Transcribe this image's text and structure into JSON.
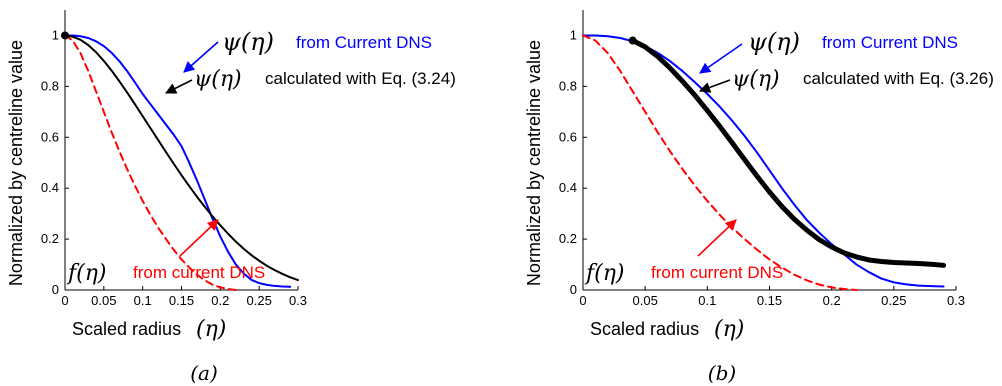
{
  "chart_data": [
    {
      "type": "line",
      "panel_label": "(a)",
      "xlabel": "Scaled radius",
      "xlabel_symbol": "(η)",
      "ylabel": "Normalized by centreline value",
      "xlim": [
        0,
        0.3
      ],
      "ylim": [
        0,
        1.1
      ],
      "xticks": [
        "0",
        "0.05",
        "0.1",
        "0.15",
        "0.2",
        "0.25",
        "0.3"
      ],
      "yticks": [
        "0",
        "0.2",
        "0.4",
        "0.6",
        "0.8",
        "1"
      ],
      "grid": false,
      "series": [
        {
          "name": "ψ(η) from Current DNS",
          "color": "#0000ff",
          "style": "solid",
          "x": [
            0,
            0.01,
            0.02,
            0.03,
            0.04,
            0.05,
            0.06,
            0.07,
            0.08,
            0.09,
            0.1,
            0.11,
            0.12,
            0.13,
            0.14,
            0.15,
            0.16,
            0.17,
            0.18,
            0.19,
            0.2,
            0.21,
            0.22,
            0.23,
            0.24,
            0.25,
            0.26,
            0.27,
            0.28,
            0.29
          ],
          "y": [
            1.0,
            1.0,
            0.997,
            0.99,
            0.977,
            0.958,
            0.932,
            0.899,
            0.86,
            0.816,
            0.77,
            0.73,
            0.69,
            0.65,
            0.61,
            0.565,
            0.5,
            0.43,
            0.355,
            0.28,
            0.21,
            0.15,
            0.1,
            0.065,
            0.04,
            0.027,
            0.02,
            0.016,
            0.014,
            0.013
          ]
        },
        {
          "name": "ψ(η) calculated with Eq. (3.24)",
          "color": "#000000",
          "style": "solid",
          "x": [
            0,
            0.01,
            0.02,
            0.03,
            0.04,
            0.05,
            0.06,
            0.07,
            0.08,
            0.09,
            0.1,
            0.11,
            0.12,
            0.13,
            0.14,
            0.15,
            0.16,
            0.17,
            0.18,
            0.19,
            0.2,
            0.21,
            0.22,
            0.23,
            0.24,
            0.25,
            0.26,
            0.27,
            0.28,
            0.29,
            0.3
          ],
          "y": [
            1.0,
            0.995,
            0.983,
            0.962,
            0.934,
            0.9,
            0.862,
            0.82,
            0.776,
            0.73,
            0.683,
            0.636,
            0.589,
            0.542,
            0.496,
            0.451,
            0.408,
            0.366,
            0.327,
            0.289,
            0.254,
            0.221,
            0.19,
            0.162,
            0.137,
            0.115,
            0.095,
            0.078,
            0.063,
            0.05,
            0.039
          ]
        },
        {
          "name": "f(η) from current DNS",
          "color": "#ff0000",
          "style": "dashed",
          "x": [
            0,
            0.01,
            0.02,
            0.03,
            0.04,
            0.05,
            0.06,
            0.07,
            0.08,
            0.09,
            0.1,
            0.11,
            0.12,
            0.13,
            0.14,
            0.15,
            0.16,
            0.17,
            0.18,
            0.19,
            0.2,
            0.21,
            0.22
          ],
          "y": [
            1.0,
            0.98,
            0.93,
            0.86,
            0.78,
            0.7,
            0.62,
            0.545,
            0.475,
            0.41,
            0.35,
            0.295,
            0.245,
            0.2,
            0.158,
            0.12,
            0.088,
            0.06,
            0.038,
            0.021,
            0.01,
            0.004,
            0.0
          ]
        }
      ],
      "marker": {
        "x": 0.0,
        "y": 1.0
      },
      "annotations": [
        {
          "math": "ψ(η)",
          "text": "from Current DNS",
          "color": "#0000ff"
        },
        {
          "math": "ψ(η)",
          "text": "calculated with Eq. (3.24)",
          "color": "#000000"
        },
        {
          "math": "f(η)",
          "text": "from current DNS",
          "color": "#ff0000"
        }
      ]
    },
    {
      "type": "line",
      "panel_label": "(b)",
      "xlabel": "Scaled radius",
      "xlabel_symbol": "(η)",
      "ylabel": "Normalized by centreline value",
      "xlim": [
        0,
        0.3
      ],
      "ylim": [
        0,
        1.1
      ],
      "xticks": [
        "0",
        "0.05",
        "0.1",
        "0.15",
        "0.2",
        "0.25",
        "0.3"
      ],
      "yticks": [
        "0",
        "0.2",
        "0.4",
        "0.6",
        "0.8",
        "1"
      ],
      "grid": false,
      "series": [
        {
          "name": "ψ(η) from Current DNS",
          "color": "#0000ff",
          "style": "solid",
          "x": [
            0,
            0.01,
            0.02,
            0.03,
            0.04,
            0.05,
            0.06,
            0.07,
            0.08,
            0.09,
            0.1,
            0.11,
            0.12,
            0.13,
            0.14,
            0.15,
            0.16,
            0.17,
            0.18,
            0.19,
            0.2,
            0.21,
            0.22,
            0.23,
            0.24,
            0.25,
            0.26,
            0.27,
            0.28,
            0.29
          ],
          "y": [
            1.0,
            1.0,
            0.997,
            0.99,
            0.977,
            0.958,
            0.932,
            0.899,
            0.86,
            0.816,
            0.77,
            0.72,
            0.665,
            0.605,
            0.54,
            0.47,
            0.4,
            0.335,
            0.275,
            0.225,
            0.18,
            0.14,
            0.1,
            0.07,
            0.045,
            0.03,
            0.022,
            0.017,
            0.015,
            0.014
          ]
        },
        {
          "name": "ψ(η) calculated with Eq. (3.26)",
          "color": "#000000",
          "style": "thick",
          "x": [
            0.04,
            0.05,
            0.06,
            0.07,
            0.08,
            0.09,
            0.1,
            0.11,
            0.12,
            0.13,
            0.14,
            0.15,
            0.16,
            0.17,
            0.18,
            0.19,
            0.2,
            0.21,
            0.22,
            0.23,
            0.24,
            0.25,
            0.26,
            0.27,
            0.28,
            0.29
          ],
          "y": [
            0.98,
            0.955,
            0.918,
            0.872,
            0.82,
            0.765,
            0.705,
            0.643,
            0.578,
            0.512,
            0.447,
            0.385,
            0.328,
            0.278,
            0.235,
            0.198,
            0.169,
            0.146,
            0.13,
            0.118,
            0.112,
            0.108,
            0.106,
            0.104,
            0.101,
            0.097
          ]
        },
        {
          "name": "f(η) from current DNS",
          "color": "#ff0000",
          "style": "dashed",
          "x": [
            0,
            0.01,
            0.02,
            0.03,
            0.04,
            0.05,
            0.06,
            0.07,
            0.08,
            0.09,
            0.1,
            0.11,
            0.12,
            0.13,
            0.14,
            0.15,
            0.16,
            0.17,
            0.18,
            0.19,
            0.2,
            0.21,
            0.22
          ],
          "y": [
            1.0,
            0.98,
            0.93,
            0.86,
            0.78,
            0.7,
            0.62,
            0.545,
            0.475,
            0.41,
            0.35,
            0.295,
            0.245,
            0.2,
            0.158,
            0.12,
            0.088,
            0.06,
            0.038,
            0.021,
            0.01,
            0.004,
            0.0
          ]
        }
      ],
      "marker": {
        "x": 0.04,
        "y": 0.98
      },
      "annotations": [
        {
          "math": "ψ(η)",
          "text": "from Current DNS",
          "color": "#0000ff"
        },
        {
          "math": "ψ(η)",
          "text": "calculated with Eq. (3.26)",
          "color": "#000000"
        },
        {
          "math": "f(η)",
          "text": "from current DNS",
          "color": "#ff0000"
        }
      ]
    }
  ]
}
